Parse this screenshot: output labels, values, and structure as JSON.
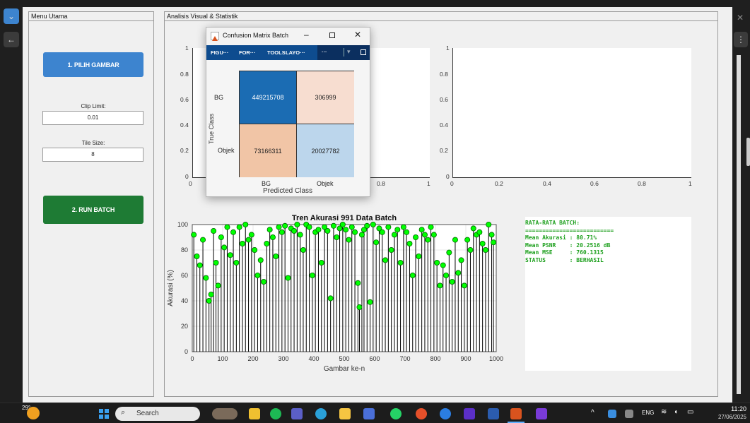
{
  "left_panel": {
    "title": "Menu Utama",
    "pick_button": "1. PILIH GAMBAR",
    "clip_label": "Clip Limit:",
    "clip_value": "0.01",
    "tile_label": "Tile Size:",
    "tile_value": "8",
    "run_button": "2. RUN BATCH",
    "pick_color": "#3d84cf",
    "run_color": "#1e7b34"
  },
  "right_panel": {
    "title": "Analisis Visual & Statistik"
  },
  "empty_axes": {
    "y_ticks": [
      "0",
      "0.2",
      "0.4",
      "0.6",
      "0.8",
      "1"
    ],
    "x_ticks": [
      "0",
      "0.2",
      "0.4",
      "0.6",
      "0.8",
      "1"
    ],
    "left_visible_x_ticks": [
      "0.8",
      "1"
    ]
  },
  "confusion_window": {
    "title": "Confusion Matrix Batch",
    "toolbar": [
      "FIGU···",
      "FOR···",
      "TOOLS",
      "LAYO···",
      "···"
    ],
    "ylabel": "True Class",
    "xlabel": "Predicted Class",
    "row_labels": [
      "BG",
      "Objek"
    ],
    "col_labels": [
      "BG",
      "Objek"
    ],
    "cells": [
      [
        "449215708",
        "306999"
      ],
      [
        "73166311",
        "20027782"
      ]
    ],
    "cell_colors": [
      [
        "#1b6cb3",
        "#f7ddd0"
      ],
      [
        "#f1c5a6",
        "#bcd6ec"
      ]
    ]
  },
  "chart_data": {
    "type": "scatter",
    "title": "Tren Akurasi 991 Data Batch",
    "xlabel": "Gambar ke-n",
    "ylabel": "Akurasi (%)",
    "xlim": [
      0,
      1000
    ],
    "ylim": [
      0,
      100
    ],
    "x_ticks": [
      0,
      100,
      200,
      300,
      400,
      500,
      600,
      700,
      800,
      900,
      1000
    ],
    "y_ticks": [
      0,
      20,
      40,
      60,
      80,
      100
    ],
    "n_points": 991,
    "grid": true,
    "marker_color": "#00ff00",
    "stem_color": "#000000",
    "series": [
      {
        "x": [
          5,
          15,
          25,
          35,
          45,
          55,
          62,
          70,
          78,
          85,
          95,
          105,
          115,
          125,
          135,
          145,
          155,
          165,
          175,
          185,
          195,
          205,
          215,
          225,
          235,
          245,
          255,
          265,
          275,
          285,
          295,
          305,
          315,
          325,
          335,
          345,
          355,
          365,
          375,
          385,
          395,
          405,
          415,
          425,
          435,
          445,
          455,
          465,
          475,
          485,
          495,
          505,
          515,
          525,
          535,
          545,
          550,
          558,
          565,
          575,
          585,
          595,
          605,
          615,
          625,
          635,
          645,
          655,
          665,
          675,
          685,
          695,
          705,
          715,
          725,
          735,
          745,
          755,
          765,
          775,
          785,
          795,
          805,
          815,
          825,
          835,
          845,
          855,
          865,
          875,
          885,
          895,
          905,
          915,
          925,
          935,
          945,
          955,
          965,
          975,
          985,
          991
        ],
        "y": [
          92,
          75,
          68,
          88,
          58,
          40,
          45,
          95,
          70,
          52,
          90,
          82,
          98,
          76,
          94,
          70,
          98,
          85,
          100,
          88,
          92,
          80,
          60,
          72,
          55,
          85,
          96,
          90,
          75,
          98,
          94,
          99,
          58,
          97,
          95,
          100,
          92,
          80,
          100,
          98,
          60,
          94,
          96,
          70,
          98,
          95,
          42,
          99,
          90,
          97,
          100,
          96,
          88,
          98,
          94,
          54,
          35,
          92,
          96,
          99,
          39,
          100,
          86,
          97,
          94,
          72,
          98,
          80,
          92,
          96,
          70,
          98,
          94,
          85,
          60,
          90,
          75,
          96,
          92,
          88,
          98,
          92,
          70,
          52,
          68,
          60,
          78,
          55,
          88,
          62,
          72,
          52,
          88,
          80,
          97,
          92,
          94,
          85,
          80,
          100,
          92,
          86
        ]
      }
    ]
  },
  "stats": {
    "lines": [
      "RATA-RATA BATCH:",
      "==========================",
      "Mean Akurasi : 80.71%",
      "Mean PSNR    : 20.2516 dB",
      "Mean MSE     : 760.1315",
      "STATUS       : BERHASIL"
    ]
  },
  "taskbar": {
    "weather": "29°",
    "search": "Search",
    "lang": "ENG",
    "time": "11:20",
    "date": "27/06/2025"
  }
}
